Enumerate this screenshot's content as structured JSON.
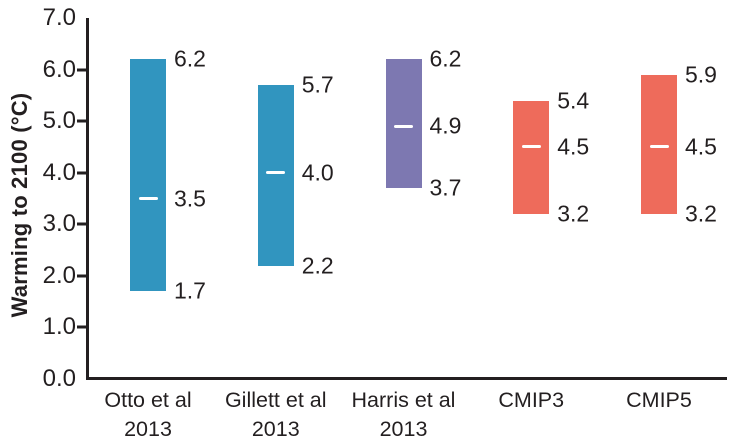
{
  "chart_data": {
    "type": "bar",
    "subtype": "floating_range_bars_with_median",
    "title": "",
    "xlabel": "",
    "ylabel": "Warming to 2100 (°C)",
    "ylim": [
      0.0,
      7.0
    ],
    "ytick_step": 1.0,
    "ytick_labels": [
      "0.0",
      "1.0",
      "2.0",
      "3.0",
      "4.0",
      "5.0",
      "6.0",
      "7.0"
    ],
    "grid": false,
    "legend": false,
    "categories": [
      [
        "Otto et al",
        "2013"
      ],
      [
        "Gillett et al",
        "2013"
      ],
      [
        "Harris et al",
        "2013"
      ],
      [
        "CMIP3"
      ],
      [
        "CMIP5"
      ]
    ],
    "bars": [
      {
        "label": "Otto et al 2013",
        "min": 1.7,
        "median": 3.5,
        "max": 6.2,
        "color": "#3195bf"
      },
      {
        "label": "Gillett et al 2013",
        "min": 2.2,
        "median": 4.0,
        "max": 5.7,
        "color": "#3195bf"
      },
      {
        "label": "Harris et al 2013",
        "min": 3.7,
        "median": 4.9,
        "max": 6.2,
        "color": "#7d78b1"
      },
      {
        "label": "CMIP3",
        "min": 3.2,
        "median": 4.5,
        "max": 5.4,
        "color": "#ee6b5b"
      },
      {
        "label": "CMIP5",
        "min": 3.2,
        "median": 4.5,
        "max": 5.9,
        "color": "#ee6b5b"
      }
    ]
  },
  "colors": {
    "axis": "#231f20",
    "text": "#231f20",
    "teal_bar": "#3195bf",
    "purple_bar": "#7d78b1",
    "salmon_bar": "#ee6b5b",
    "median_dash": "#ffffff",
    "background": "#ffffff"
  }
}
